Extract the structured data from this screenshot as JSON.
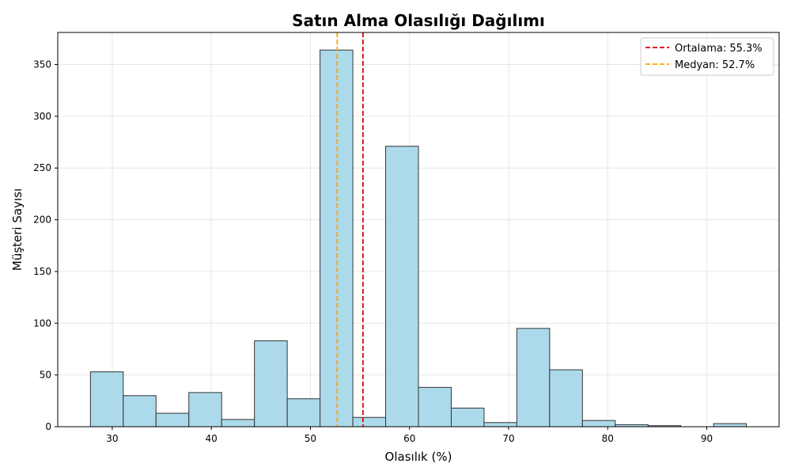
{
  "chart_data": {
    "type": "bar",
    "title": "Satın Alma Olasılığı Dağılımı",
    "xlabel": "Olasılık (%)",
    "ylabel": "Müşteri Sayısı",
    "xlim": [
      24.5,
      97.3
    ],
    "ylim": [
      0,
      381
    ],
    "xticks": [
      30,
      40,
      50,
      60,
      70,
      80,
      90
    ],
    "yticks": [
      0,
      50,
      100,
      150,
      200,
      250,
      300,
      350
    ],
    "grid": true,
    "legend_position": "top-right",
    "bin_start": 27.8,
    "bin_width": 3.31,
    "values": [
      53,
      30,
      13,
      33,
      7,
      83,
      27,
      364,
      9,
      271,
      38,
      18,
      4,
      95,
      55,
      6,
      2,
      1,
      0,
      3
    ],
    "bar_color": "#a8d8ea",
    "bar_edge_color": "#333333",
    "lines": [
      {
        "label": "Ortalama: 55.3%",
        "x": 55.3,
        "color": "#e00000"
      },
      {
        "label": "Medyan: 52.7%",
        "x": 52.7,
        "color": "#ffa500"
      }
    ]
  }
}
